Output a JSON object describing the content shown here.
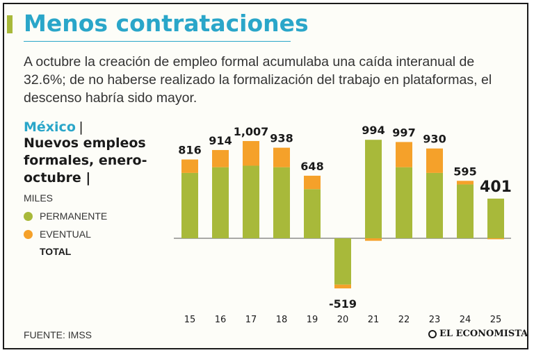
{
  "title": "Menos contrataciones",
  "subtitle": "A octubre la creación de empleo formal acumulaba una caída interanual de 32.6%; de no haberse realizado la formalización del trabajo en plataformas, el descenso habría sido mayor.",
  "legend": {
    "country": "México",
    "separator": "|",
    "chart_title": "Nuevos empleos formales, enero-octubre",
    "units": "MILES",
    "permanent_label": "PERMANENTE",
    "eventual_label": "EVENTUAL",
    "total_label": "TOTAL"
  },
  "source": "FUENTE: IMSS",
  "logo_text": "EL ECONOMISTA",
  "colors": {
    "title": "#2aa6c9",
    "permanent": "#a8b93a",
    "eventual": "#f5a12a",
    "text": "#1a1a1a"
  },
  "chart_data": {
    "type": "bar",
    "stacked": true,
    "categories": [
      "15",
      "16",
      "17",
      "18",
      "19",
      "20",
      "21",
      "22",
      "23",
      "24",
      "25"
    ],
    "series": [
      {
        "name": "PERMANENTE",
        "values": [
          677,
          736,
          752,
          736,
          509,
          -480,
          1020,
          736,
          677,
          558,
          411
        ]
      },
      {
        "name": "EVENTUAL",
        "values": [
          139,
          178,
          255,
          202,
          139,
          -39,
          -26,
          261,
          253,
          37,
          -10
        ]
      }
    ],
    "totals": [
      816,
      914,
      1007,
      938,
      648,
      -519,
      994,
      997,
      930,
      595,
      401
    ],
    "total_labels": [
      "816",
      "914",
      "1,007",
      "938",
      "648",
      "-519",
      "994",
      "997",
      "930",
      "595",
      "401"
    ],
    "ylim": [
      -560,
      1150
    ],
    "grid": false,
    "legend_position": "left"
  }
}
